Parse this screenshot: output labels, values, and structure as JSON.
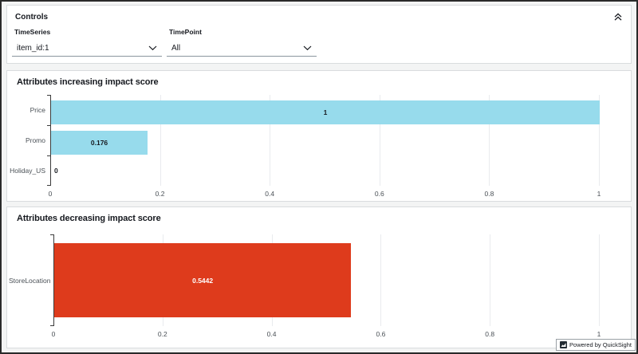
{
  "controls": {
    "title": "Controls",
    "filters": [
      {
        "label": "TimeSeries",
        "value": "item_id:1"
      },
      {
        "label": "TimePoint",
        "value": "All"
      }
    ]
  },
  "chart_data": [
    {
      "type": "bar",
      "orientation": "horizontal",
      "title": "Attributes increasing impact score",
      "categories": [
        "Price",
        "Promo",
        "Holiday_US"
      ],
      "values": [
        1,
        0.176,
        0
      ],
      "value_labels": [
        "1",
        "0.176",
        "0"
      ],
      "xlim": [
        0,
        1
      ],
      "x_ticks": [
        "0",
        "0.2",
        "0.4",
        "0.6",
        "0.8",
        "1"
      ],
      "grid": true,
      "legend": "none",
      "bar_color": "#97DBEC"
    },
    {
      "type": "bar",
      "orientation": "horizontal",
      "title": "Attributes decreasing impact score",
      "categories": [
        "StoreLocation"
      ],
      "values": [
        0.5442
      ],
      "value_labels": [
        "0.5442"
      ],
      "xlim": [
        0,
        1
      ],
      "x_ticks": [
        "0",
        "0.2",
        "0.4",
        "0.6",
        "0.8",
        "1"
      ],
      "grid": true,
      "legend": "none",
      "bar_color": "#DE3B1C"
    }
  ],
  "badge": {
    "label": "Powered by QuickSight"
  },
  "colors": {
    "increasing_bar": "#97DBEC",
    "decreasing_bar": "#DE3B1C",
    "panel_border": "#D9DCDE",
    "text_primary": "#16191F",
    "text_axis": "#4A5056"
  }
}
